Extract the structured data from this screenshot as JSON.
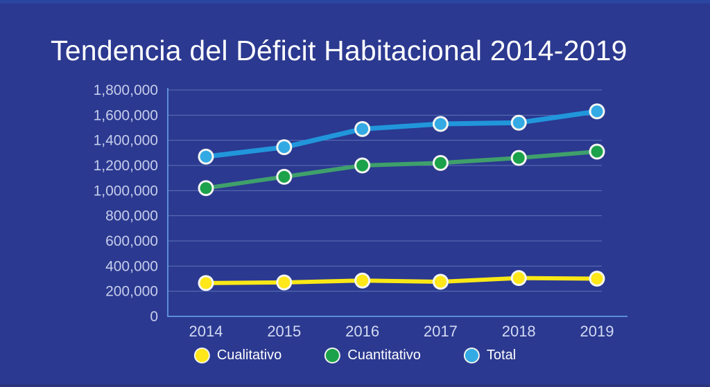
{
  "page": {
    "title": "Tendencia del Déficit Habitacional 2014-2019"
  },
  "colors": {
    "background": "#2B3990",
    "top_strip": "#2B46A0",
    "bottom_strip": "#2A357E",
    "title_text": "#FFFFFF",
    "axis_line": "#5C8FD6",
    "gridline": "#8FB0E0",
    "y_tick_label": "#C6CDEB",
    "x_tick_label": "#D3DAF3",
    "marker_ring": "#F4F6F2",
    "legend_text": "#FFFFFF"
  },
  "chart_data": {
    "type": "line",
    "title": "Tendencia del Déficit Habitacional 2014-2019",
    "categories": [
      "2014",
      "2015",
      "2016",
      "2017",
      "2018",
      "2019"
    ],
    "series": [
      {
        "name": "Cualitativo",
        "line_color": "#F9E816",
        "marker_color": "#FFE719",
        "values": [
          265000,
          270000,
          285000,
          275000,
          305000,
          300000
        ]
      },
      {
        "name": "Cuantitativo",
        "line_color": "#3FA06B",
        "marker_color": "#1BA24A",
        "values": [
          1020000,
          1110000,
          1200000,
          1220000,
          1260000,
          1310000
        ]
      },
      {
        "name": "Total",
        "line_color": "#2196DB",
        "marker_color": "#33AAE3",
        "values": [
          1270000,
          1345000,
          1490000,
          1530000,
          1540000,
          1630000
        ]
      }
    ],
    "ylim": [
      0,
      1800000
    ],
    "ytick_step": 200000,
    "ytick_labels": [
      "0",
      "200,000",
      "400,000",
      "600,000",
      "800,000",
      "1,000,000",
      "1,200,000",
      "1,400,000",
      "1,600,000",
      "1,800,000"
    ],
    "xlabel": "",
    "ylabel": "",
    "grid": true,
    "legend_position": "bottom"
  },
  "legend": {
    "items": [
      {
        "label": "Cualitativo"
      },
      {
        "label": "Cuantitativo"
      },
      {
        "label": "Total"
      }
    ]
  }
}
